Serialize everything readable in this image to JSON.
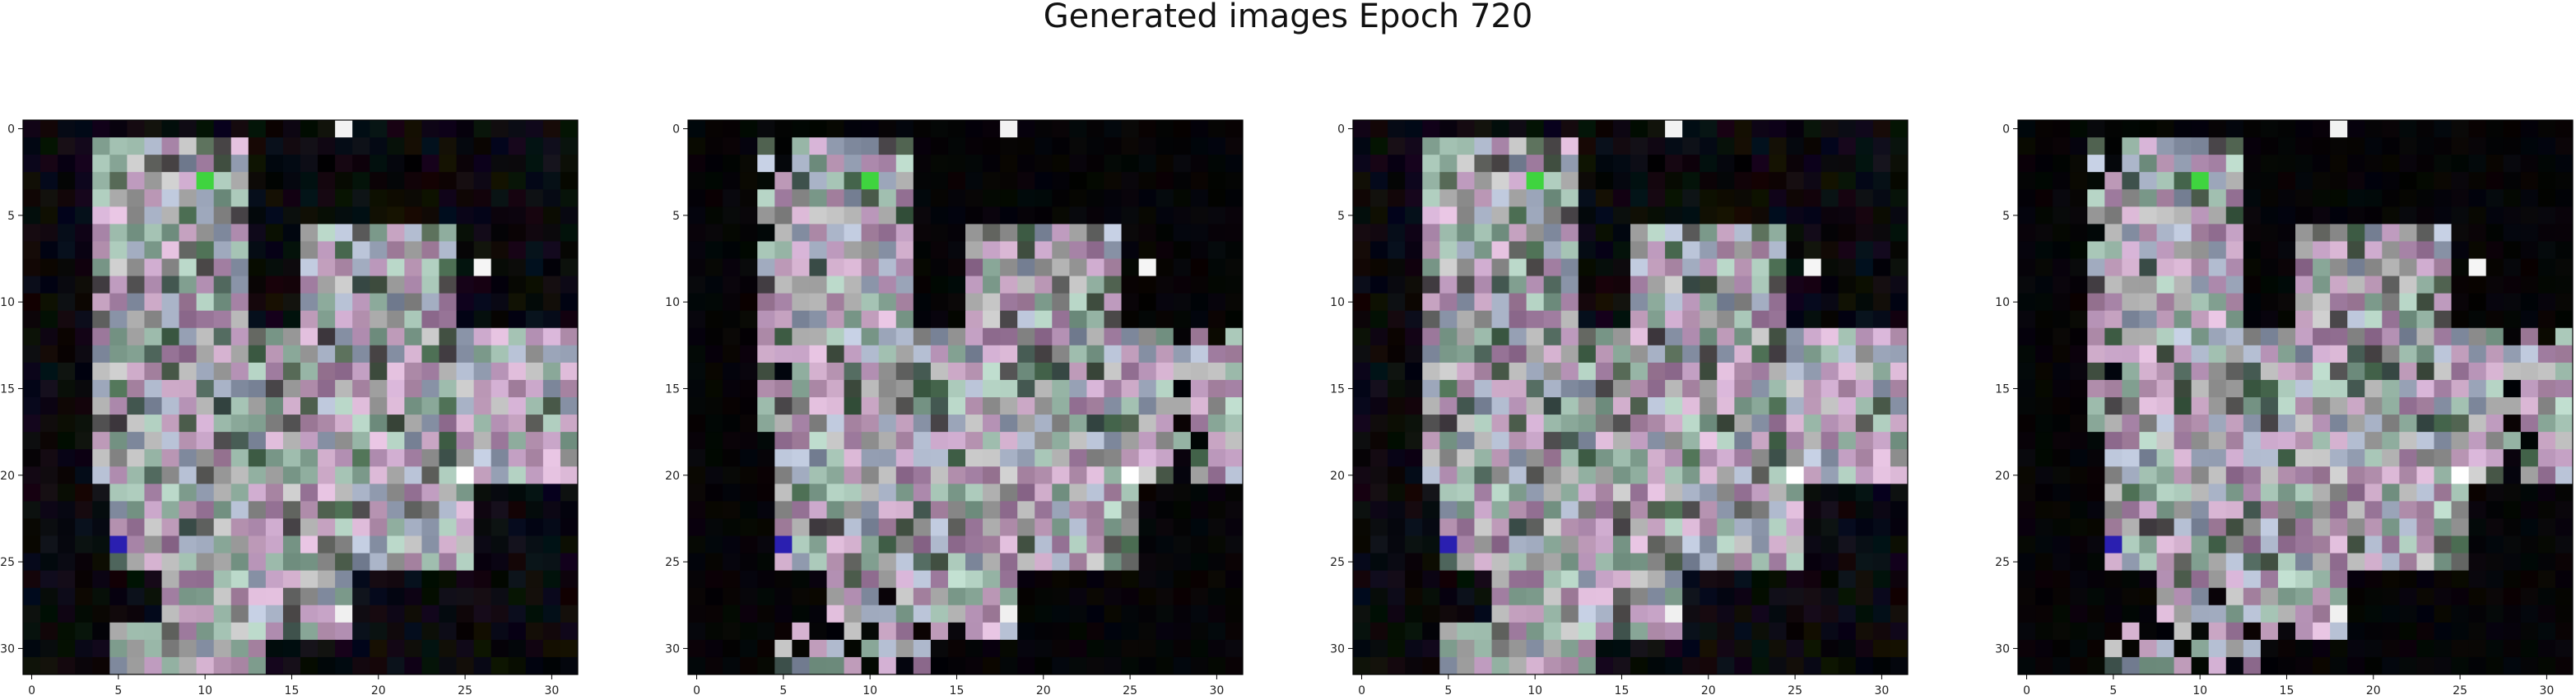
{
  "figure": {
    "title": "Generated images Epoch 720"
  },
  "chart_data": {
    "type": "heatmap",
    "title": "Generated images Epoch 720",
    "description_of_data": "Four 32x32 RGB pixel images shown with imshow; axes in pixel index units",
    "grid_size": 32,
    "xlim": [
      -0.5,
      31.5
    ],
    "ylim": [
      31.5,
      -0.5
    ],
    "x_ticks": [
      0,
      5,
      10,
      15,
      20,
      25,
      30
    ],
    "y_ticks": [
      0,
      5,
      10,
      15,
      20,
      25,
      30
    ],
    "panels": [
      {
        "index": 1,
        "variant": "dense"
      },
      {
        "index": 2,
        "variant": "sparse"
      },
      {
        "index": 3,
        "variant": "dense"
      },
      {
        "index": 4,
        "variant": "sparse"
      }
    ],
    "notable_pixels": [
      {
        "x": 18,
        "y": 0,
        "color": "#f2f2f2"
      },
      {
        "x": 10,
        "y": 3,
        "color": "#3fd43f"
      },
      {
        "x": 26,
        "y": 8,
        "color": "#f5f5f5"
      },
      {
        "x": 5,
        "y": 24,
        "color": "#2a1fb0"
      },
      {
        "x": 18,
        "y": 28,
        "color": "#f0f0f0"
      },
      {
        "x": 25,
        "y": 20,
        "color": "#ffffff"
      }
    ]
  }
}
